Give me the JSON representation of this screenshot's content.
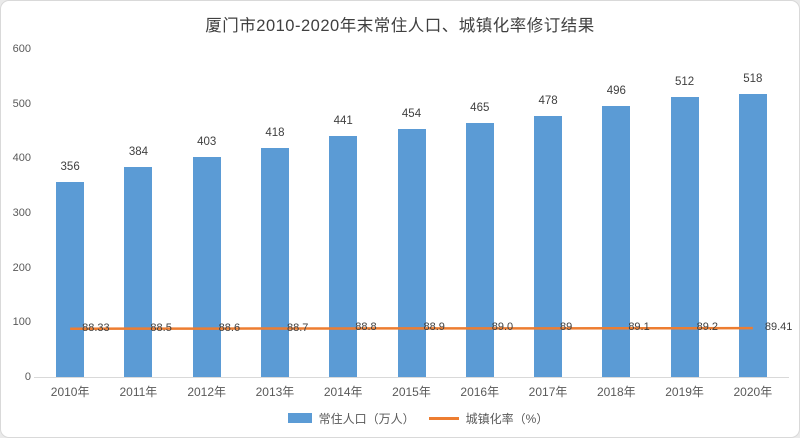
{
  "title": "厦门市2010-2020年末常住人口、城镇化率修订结果",
  "chart_data": {
    "type": "bar",
    "subtype": "bar-line-combo",
    "title": "厦门市2010-2020年末常住人口、城镇化率修订结果",
    "categories": [
      "2010年",
      "2011年",
      "2012年",
      "2013年",
      "2014年",
      "2015年",
      "2016年",
      "2017年",
      "2018年",
      "2019年",
      "2020年"
    ],
    "series": [
      {
        "name": "常住人口（万人）",
        "type": "bar",
        "color": "#5B9BD5",
        "values": [
          356,
          384,
          403,
          418,
          441,
          454,
          465,
          478,
          496,
          512,
          518
        ],
        "value_labels": [
          "356",
          "384",
          "403",
          "418",
          "441",
          "454",
          "465",
          "478",
          "496",
          "512",
          "518"
        ]
      },
      {
        "name": "城镇化率（%）",
        "type": "line",
        "color": "#ED7D31",
        "values": [
          88.33,
          88.5,
          88.6,
          88.7,
          88.8,
          88.9,
          89.0,
          89.0,
          89.1,
          89.2,
          89.41
        ],
        "value_labels": [
          "88.33",
          "88.5",
          "88.6",
          "88.7",
          "88.8",
          "88.9",
          "89.0",
          "89",
          "89.1",
          "89.2",
          "89.41"
        ]
      }
    ],
    "xlabel": "",
    "ylabel": "",
    "y_axis": {
      "min": 0,
      "max": 600,
      "step": 100,
      "ticks": [
        "0",
        "100",
        "200",
        "300",
        "400",
        "500",
        "600"
      ]
    },
    "grid": false,
    "legend_position": "bottom"
  },
  "colors": {
    "bar": "#5B9BD5",
    "line": "#ED7D31",
    "title_text": "#404040",
    "axis_text": "#595959",
    "data_label_text": "#404040",
    "axis_line": "#D9D9D9",
    "frame_border": "#D9D9D9",
    "background": "#FFFFFF"
  }
}
